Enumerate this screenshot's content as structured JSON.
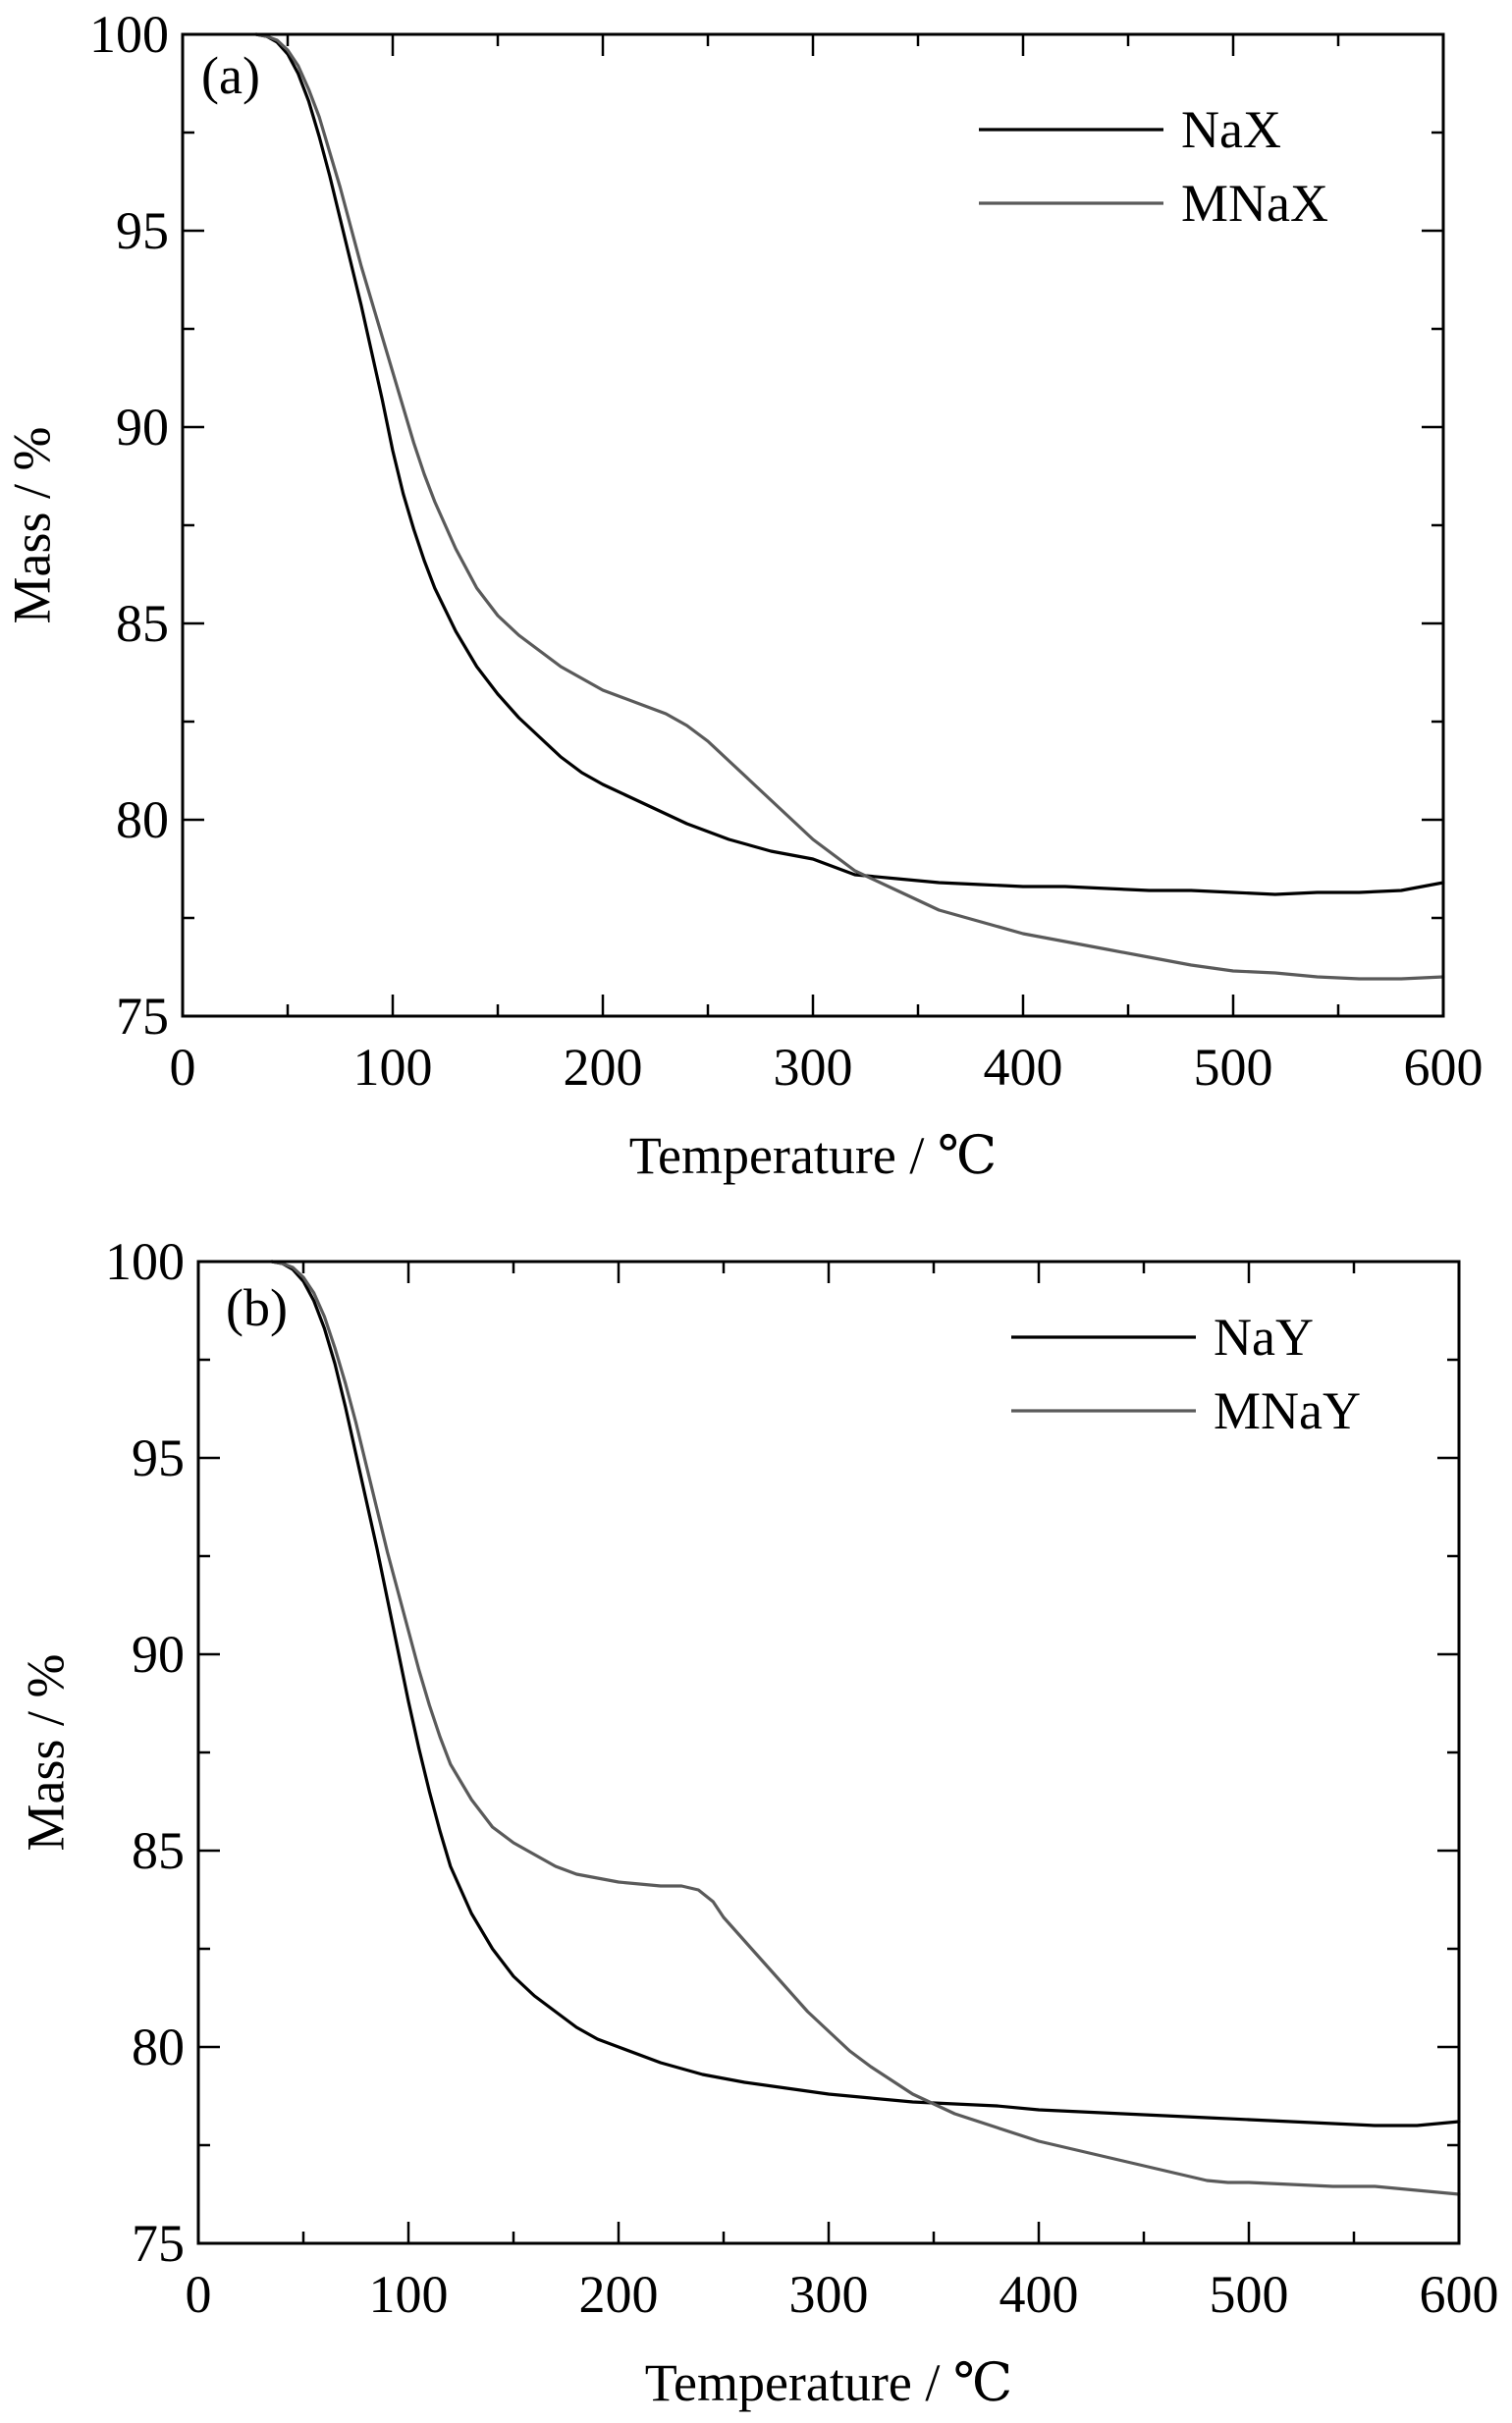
{
  "figure": {
    "panels": [
      "a",
      "b"
    ]
  },
  "chart_data": [
    {
      "type": "line",
      "panel_label": "(a)",
      "xlabel": "Temperature / ℃",
      "ylabel": "Mass / %",
      "xlim": [
        0,
        600
      ],
      "ylim": [
        75,
        100
      ],
      "xticks": [
        0,
        100,
        200,
        300,
        400,
        500,
        600
      ],
      "yticks": [
        75,
        80,
        85,
        90,
        95,
        100
      ],
      "x_minor_step": 50,
      "y_minor_step": 2.5,
      "legend_position": "top-right",
      "grid": false,
      "series": [
        {
          "name": "NaX",
          "color": "#000000",
          "x": [
            35,
            40,
            45,
            50,
            55,
            60,
            65,
            70,
            75,
            80,
            85,
            90,
            95,
            100,
            105,
            110,
            115,
            120,
            130,
            140,
            150,
            160,
            170,
            180,
            190,
            200,
            220,
            240,
            260,
            280,
            300,
            320,
            340,
            360,
            380,
            400,
            420,
            440,
            460,
            480,
            500,
            520,
            540,
            560,
            580,
            600
          ],
          "y": [
            100,
            99.95,
            99.8,
            99.5,
            99.0,
            98.3,
            97.4,
            96.4,
            95.3,
            94.2,
            93.1,
            91.9,
            90.7,
            89.4,
            88.3,
            87.4,
            86.6,
            85.9,
            84.8,
            83.9,
            83.2,
            82.6,
            82.1,
            81.6,
            81.2,
            80.9,
            80.4,
            79.9,
            79.5,
            79.2,
            79.0,
            78.6,
            78.5,
            78.4,
            78.35,
            78.3,
            78.3,
            78.25,
            78.2,
            78.2,
            78.15,
            78.1,
            78.15,
            78.15,
            78.2,
            78.4
          ]
        },
        {
          "name": "MNaX",
          "color": "#5a5a5a",
          "x": [
            35,
            40,
            45,
            50,
            55,
            60,
            65,
            70,
            75,
            80,
            85,
            90,
            95,
            100,
            105,
            110,
            115,
            120,
            130,
            140,
            150,
            160,
            170,
            180,
            190,
            200,
            210,
            220,
            230,
            240,
            250,
            260,
            270,
            280,
            290,
            300,
            310,
            320,
            340,
            360,
            380,
            400,
            420,
            440,
            460,
            480,
            500,
            520,
            540,
            560,
            580,
            600
          ],
          "y": [
            100,
            99.95,
            99.85,
            99.6,
            99.2,
            98.6,
            97.9,
            97.0,
            96.1,
            95.1,
            94.1,
            93.2,
            92.3,
            91.4,
            90.5,
            89.6,
            88.8,
            88.1,
            86.9,
            85.9,
            85.2,
            84.7,
            84.3,
            83.9,
            83.6,
            83.3,
            83.1,
            82.9,
            82.7,
            82.4,
            82.0,
            81.5,
            81.0,
            80.5,
            80.0,
            79.5,
            79.1,
            78.7,
            78.2,
            77.7,
            77.4,
            77.1,
            76.9,
            76.7,
            76.5,
            76.3,
            76.15,
            76.1,
            76.0,
            75.95,
            75.95,
            76.0
          ]
        }
      ]
    },
    {
      "type": "line",
      "panel_label": "(b)",
      "xlabel": "Temperature / ℃",
      "ylabel": "Mass / %",
      "xlim": [
        0,
        600
      ],
      "ylim": [
        75,
        100
      ],
      "xticks": [
        0,
        100,
        200,
        300,
        400,
        500,
        600
      ],
      "yticks": [
        75,
        80,
        85,
        90,
        95,
        100
      ],
      "x_minor_step": 50,
      "y_minor_step": 2.5,
      "legend_position": "top-right",
      "grid": false,
      "series": [
        {
          "name": "NaY",
          "color": "#000000",
          "x": [
            35,
            40,
            45,
            50,
            55,
            60,
            65,
            70,
            75,
            80,
            85,
            90,
            95,
            100,
            105,
            110,
            115,
            120,
            130,
            140,
            150,
            160,
            170,
            180,
            190,
            200,
            220,
            240,
            260,
            280,
            300,
            320,
            340,
            360,
            380,
            400,
            420,
            440,
            460,
            480,
            500,
            520,
            540,
            560,
            580,
            600
          ],
          "y": [
            100,
            99.95,
            99.8,
            99.5,
            99.0,
            98.3,
            97.4,
            96.3,
            95.1,
            93.9,
            92.7,
            91.4,
            90.1,
            88.8,
            87.6,
            86.5,
            85.5,
            84.6,
            83.4,
            82.5,
            81.8,
            81.3,
            80.9,
            80.5,
            80.2,
            80.0,
            79.6,
            79.3,
            79.1,
            78.95,
            78.8,
            78.7,
            78.6,
            78.55,
            78.5,
            78.4,
            78.35,
            78.3,
            78.25,
            78.2,
            78.15,
            78.1,
            78.05,
            78.0,
            78.0,
            78.1
          ]
        },
        {
          "name": "MNaY",
          "color": "#5a5a5a",
          "x": [
            35,
            40,
            45,
            50,
            55,
            60,
            65,
            70,
            75,
            80,
            85,
            90,
            95,
            100,
            105,
            110,
            115,
            120,
            130,
            140,
            150,
            160,
            170,
            180,
            190,
            200,
            210,
            220,
            230,
            238,
            245,
            250,
            260,
            270,
            280,
            290,
            300,
            310,
            320,
            340,
            360,
            380,
            400,
            420,
            440,
            460,
            480,
            490,
            500,
            520,
            540,
            560,
            580,
            600
          ],
          "y": [
            100,
            99.95,
            99.85,
            99.6,
            99.2,
            98.6,
            97.8,
            96.9,
            95.9,
            94.8,
            93.7,
            92.6,
            91.6,
            90.6,
            89.6,
            88.7,
            87.9,
            87.2,
            86.3,
            85.6,
            85.2,
            84.9,
            84.6,
            84.4,
            84.3,
            84.2,
            84.15,
            84.1,
            84.1,
            84.0,
            83.7,
            83.3,
            82.7,
            82.1,
            81.5,
            80.9,
            80.4,
            79.9,
            79.5,
            78.8,
            78.3,
            77.95,
            77.6,
            77.35,
            77.1,
            76.85,
            76.6,
            76.55,
            76.55,
            76.5,
            76.45,
            76.45,
            76.35,
            76.25
          ]
        }
      ]
    }
  ]
}
